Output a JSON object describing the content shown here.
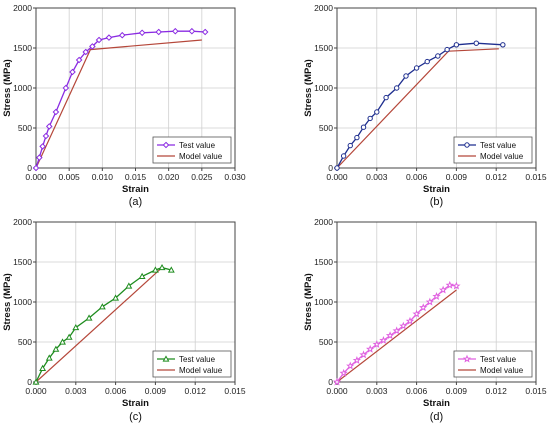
{
  "colors": {
    "model": "#b5473a",
    "test_a": "#8a2be2",
    "test_b": "#1f2f8f",
    "test_c": "#1e8c1e",
    "test_d": "#e060e0"
  },
  "chart_data": [
    {
      "id": "a",
      "type": "line",
      "panel_label": "(a)",
      "xlabel": "Strain",
      "ylabel": "Stress (MPa)",
      "xlim": [
        0,
        0.03
      ],
      "ylim": [
        0,
        2000
      ],
      "xticks": [
        "0.000",
        "0.005",
        "0.010",
        "0.015",
        "0.020",
        "0.025",
        "0.030"
      ],
      "yticks": [
        "0",
        "500",
        "1000",
        "1500",
        "2000"
      ],
      "legend_position": "bottom-right",
      "series": [
        {
          "name": "Test value",
          "marker": "diamond",
          "x": [
            0,
            0.0005,
            0.001,
            0.0015,
            0.002,
            0.003,
            0.0045,
            0.0055,
            0.0065,
            0.0075,
            0.0085,
            0.0095,
            0.011,
            0.013,
            0.016,
            0.0185,
            0.021,
            0.0235,
            0.0255
          ],
          "y": [
            0,
            130,
            270,
            400,
            520,
            700,
            1000,
            1200,
            1350,
            1450,
            1520,
            1600,
            1630,
            1660,
            1690,
            1700,
            1710,
            1710,
            1700
          ]
        },
        {
          "name": "Model value",
          "x": [
            0,
            0.0082,
            0.025
          ],
          "y": [
            0,
            1480,
            1600
          ]
        }
      ]
    },
    {
      "id": "b",
      "type": "line",
      "panel_label": "(b)",
      "xlabel": "Strain",
      "ylabel": "Stress (MPa)",
      "xlim": [
        0,
        0.015
      ],
      "ylim": [
        0,
        2000
      ],
      "xticks": [
        "0.000",
        "0.003",
        "0.006",
        "0.009",
        "0.012",
        "0.015"
      ],
      "yticks": [
        "0",
        "500",
        "1000",
        "1500",
        "2000"
      ],
      "legend_position": "bottom-right",
      "series": [
        {
          "name": "Test value",
          "marker": "circle",
          "x": [
            0,
            0.0005,
            0.001,
            0.0015,
            0.002,
            0.0025,
            0.003,
            0.0037,
            0.0045,
            0.0052,
            0.006,
            0.0068,
            0.0076,
            0.0083,
            0.009,
            0.0105,
            0.0125
          ],
          "y": [
            0,
            150,
            280,
            380,
            510,
            620,
            700,
            880,
            1000,
            1150,
            1250,
            1330,
            1400,
            1480,
            1540,
            1560,
            1540
          ]
        },
        {
          "name": "Model value",
          "x": [
            0,
            0.0084,
            0.0122
          ],
          "y": [
            0,
            1460,
            1490
          ]
        }
      ]
    },
    {
      "id": "c",
      "type": "line",
      "panel_label": "(c)",
      "xlabel": "Strain",
      "ylabel": "Stress (MPa)",
      "xlim": [
        0,
        0.015
      ],
      "ylim": [
        0,
        2000
      ],
      "xticks": [
        "0.000",
        "0.003",
        "0.006",
        "0.009",
        "0.012",
        "0.015"
      ],
      "yticks": [
        "0",
        "500",
        "1000",
        "1500",
        "2000"
      ],
      "legend_position": "bottom-right",
      "series": [
        {
          "name": "Test value",
          "marker": "triangle",
          "x": [
            0,
            0.0005,
            0.001,
            0.0015,
            0.002,
            0.0025,
            0.003,
            0.004,
            0.005,
            0.006,
            0.007,
            0.008,
            0.009,
            0.0095,
            0.0102
          ],
          "y": [
            0,
            170,
            300,
            410,
            500,
            560,
            680,
            800,
            940,
            1050,
            1200,
            1320,
            1400,
            1430,
            1400
          ]
        },
        {
          "name": "Model value",
          "x": [
            0,
            0.0095
          ],
          "y": [
            0,
            1430
          ]
        }
      ]
    },
    {
      "id": "d",
      "type": "line",
      "panel_label": "(d)",
      "xlabel": "Strain",
      "ylabel": "Stress (MPa)",
      "xlim": [
        0,
        0.015
      ],
      "ylim": [
        0,
        2000
      ],
      "xticks": [
        "0.000",
        "0.003",
        "0.006",
        "0.009",
        "0.012",
        "0.015"
      ],
      "yticks": [
        "0",
        "500",
        "1000",
        "1500",
        "2000"
      ],
      "legend_position": "bottom-right",
      "series": [
        {
          "name": "Test value",
          "marker": "star",
          "x": [
            0,
            0.0005,
            0.001,
            0.0015,
            0.002,
            0.0025,
            0.003,
            0.0035,
            0.004,
            0.0045,
            0.005,
            0.0055,
            0.006,
            0.0065,
            0.007,
            0.0075,
            0.008,
            0.0085,
            0.009
          ],
          "y": [
            0,
            110,
            200,
            270,
            340,
            410,
            470,
            520,
            580,
            640,
            700,
            760,
            850,
            930,
            1000,
            1070,
            1150,
            1210,
            1200
          ]
        },
        {
          "name": "Model value",
          "x": [
            0,
            0.009
          ],
          "y": [
            0,
            1150
          ]
        }
      ]
    }
  ]
}
